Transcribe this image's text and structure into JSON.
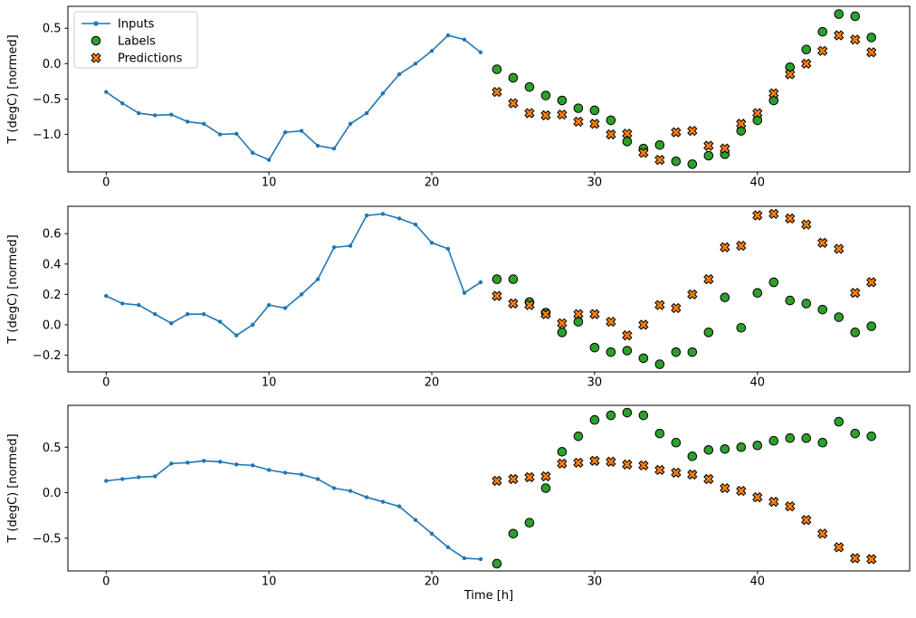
{
  "figure": {
    "description": "Three stacked time-series forecast subplots showing inputs, labels and predictions"
  },
  "chart_data": {
    "type": "line",
    "title": "",
    "xlabel": "Time [h]",
    "ylabel": "T (degC) [normed]",
    "legend": {
      "position": "upper left",
      "entries": [
        "Inputs",
        "Labels",
        "Predictions"
      ]
    },
    "colors": {
      "inputs": "#1f77b4",
      "labels": "#2ca02c",
      "predictions": "#ff7f0e",
      "marker_edge": "#000000",
      "legend_border": "#cccccc",
      "axes": "#000000"
    },
    "grid": false,
    "xlim": [
      -2.35,
      49.35
    ],
    "xticks": [
      0,
      10,
      20,
      30,
      40
    ],
    "x_inputs": [
      0,
      1,
      2,
      3,
      4,
      5,
      6,
      7,
      8,
      9,
      10,
      11,
      12,
      13,
      14,
      15,
      16,
      17,
      18,
      19,
      20,
      21,
      22,
      23
    ],
    "x_future": [
      24,
      25,
      26,
      27,
      28,
      29,
      30,
      31,
      32,
      33,
      34,
      35,
      36,
      37,
      38,
      39,
      40,
      41,
      42,
      43,
      44,
      45,
      46,
      47
    ],
    "panels": [
      {
        "ylim": [
          -1.53,
          0.81
        ],
        "yticks": [
          0.5,
          0.0,
          -0.5,
          -1.0
        ],
        "series": {
          "inputs": [
            -0.4,
            -0.56,
            -0.7,
            -0.73,
            -0.72,
            -0.82,
            -0.85,
            -1.0,
            -0.99,
            -1.26,
            -1.36,
            -0.97,
            -0.95,
            -1.16,
            -1.2,
            -0.85,
            -0.7,
            -0.42,
            -0.15,
            0.0,
            0.18,
            0.4,
            0.34,
            0.16
          ],
          "labels": [
            -0.08,
            -0.2,
            -0.33,
            -0.45,
            -0.52,
            -0.63,
            -0.66,
            -0.8,
            -1.1,
            -1.2,
            -1.15,
            -1.38,
            -1.42,
            -1.3,
            -1.28,
            -0.95,
            -0.8,
            -0.52,
            -0.05,
            0.2,
            0.45,
            0.7,
            0.67,
            0.37
          ],
          "predictions": [
            -0.4,
            -0.56,
            -0.7,
            -0.73,
            -0.72,
            -0.82,
            -0.85,
            -1.0,
            -0.99,
            -1.26,
            -1.36,
            -0.97,
            -0.95,
            -1.16,
            -1.2,
            -0.85,
            -0.7,
            -0.42,
            -0.15,
            0.0,
            0.18,
            0.4,
            0.34,
            0.16
          ]
        }
      },
      {
        "ylim": [
          -0.31,
          0.78
        ],
        "yticks": [
          0.6,
          0.4,
          0.2,
          0.0,
          -0.2
        ],
        "series": {
          "inputs": [
            0.19,
            0.14,
            0.13,
            0.07,
            0.01,
            0.07,
            0.07,
            0.02,
            -0.07,
            0.0,
            0.13,
            0.11,
            0.2,
            0.3,
            0.51,
            0.52,
            0.72,
            0.73,
            0.7,
            0.66,
            0.54,
            0.5,
            0.21,
            0.28
          ],
          "labels": [
            0.3,
            0.3,
            0.15,
            0.08,
            -0.05,
            0.02,
            -0.15,
            -0.18,
            -0.17,
            -0.22,
            -0.26,
            -0.18,
            -0.18,
            -0.05,
            0.18,
            -0.02,
            0.21,
            0.28,
            0.16,
            0.14,
            0.1,
            0.05,
            -0.05,
            -0.01
          ],
          "predictions": [
            0.19,
            0.14,
            0.13,
            0.07,
            0.01,
            0.07,
            0.07,
            0.02,
            -0.07,
            0.0,
            0.13,
            0.11,
            0.2,
            0.3,
            0.51,
            0.52,
            0.72,
            0.73,
            0.7,
            0.66,
            0.54,
            0.5,
            0.21,
            0.28
          ]
        }
      },
      {
        "ylim": [
          -0.86,
          0.96
        ],
        "yticks": [
          0.5,
          0.0,
          -0.5
        ],
        "series": {
          "inputs": [
            0.13,
            0.15,
            0.17,
            0.18,
            0.32,
            0.33,
            0.35,
            0.34,
            0.31,
            0.3,
            0.25,
            0.22,
            0.2,
            0.15,
            0.05,
            0.02,
            -0.05,
            -0.1,
            -0.15,
            -0.3,
            -0.45,
            -0.6,
            -0.72,
            -0.73
          ],
          "labels": [
            -0.78,
            -0.45,
            -0.33,
            0.05,
            0.45,
            0.62,
            0.8,
            0.85,
            0.88,
            0.85,
            0.65,
            0.55,
            0.4,
            0.47,
            0.48,
            0.5,
            0.52,
            0.57,
            0.6,
            0.6,
            0.55,
            0.78,
            0.65,
            0.62
          ],
          "predictions": [
            0.13,
            0.15,
            0.17,
            0.18,
            0.32,
            0.33,
            0.35,
            0.34,
            0.31,
            0.3,
            0.25,
            0.22,
            0.2,
            0.15,
            0.05,
            0.02,
            -0.05,
            -0.1,
            -0.15,
            -0.3,
            -0.45,
            -0.6,
            -0.72,
            -0.73
          ]
        }
      }
    ]
  }
}
